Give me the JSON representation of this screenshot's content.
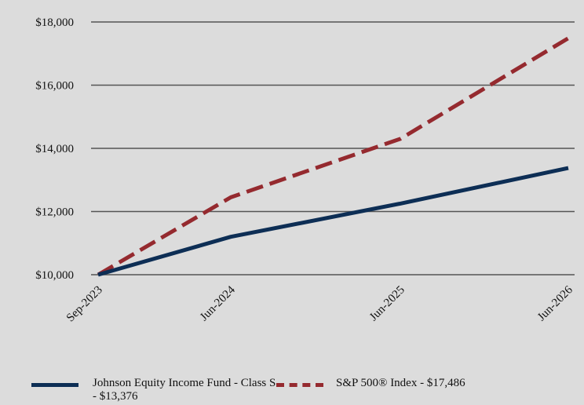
{
  "chart_data": {
    "type": "line",
    "x": [
      "Sep-2023",
      "Jun-2024",
      "Jun-2025",
      "Jun-2026"
    ],
    "x_axis_ticks": [
      "Sep-2023",
      "Jun-2024",
      "Jun-2025",
      "Jun-2026"
    ],
    "y_axis_ticks": [
      "$10,000",
      "$12,000",
      "$14,000",
      "$16,000",
      "$18,000"
    ],
    "ylim": [
      10000,
      18000
    ],
    "grid": true,
    "legend_position": "bottom",
    "series": [
      {
        "name": "Johnson Equity Income Fund - Class S - $13,376",
        "style": "solid",
        "color": "#0d2e55",
        "values": [
          10000,
          11200,
          12250,
          13376
        ]
      },
      {
        "name": "S&P 500® Index - $17,486",
        "style": "dashed",
        "color": "#952a2f",
        "values": [
          10000,
          12450,
          14300,
          17486
        ]
      }
    ]
  }
}
